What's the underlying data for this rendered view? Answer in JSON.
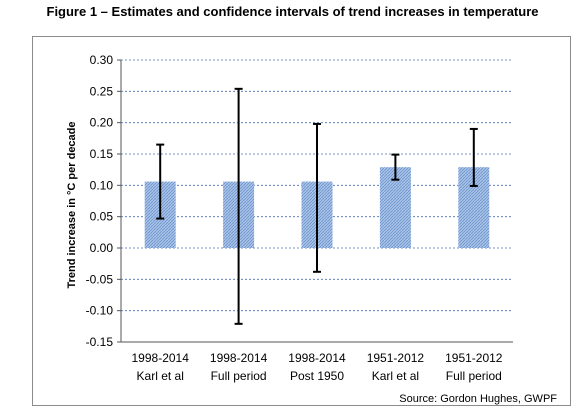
{
  "figure": {
    "title": "Figure 1 – Estimates and confidence intervals of trend increases in temperature",
    "source": "Source: Gordon Hughes, GWPF"
  },
  "colors": {
    "bar": "#a9c4e8",
    "bar_hatch": "#6f95cc",
    "grid": "#4a6fb0",
    "errorbar": "#000000"
  },
  "chart_data": {
    "type": "bar",
    "categories": [
      [
        "1998-2014",
        "Karl et al"
      ],
      [
        "1998-2014",
        "Full period"
      ],
      [
        "1998-2014",
        "Post 1950"
      ],
      [
        "1951-2012",
        "Karl et al"
      ],
      [
        "1951-2012",
        "Full period"
      ]
    ],
    "values": [
      0.106,
      0.106,
      0.106,
      0.129,
      0.129
    ],
    "error_low": [
      0.047,
      -0.121,
      -0.038,
      0.109,
      0.099
    ],
    "error_high": [
      0.165,
      0.254,
      0.198,
      0.149,
      0.19
    ],
    "ylabel": "Trend increase in °C per decade",
    "xlabel": "",
    "ylim": [
      -0.15,
      0.3
    ],
    "yticks": [
      0.3,
      0.25,
      0.2,
      0.15,
      0.1,
      0.05,
      0.0,
      -0.05,
      -0.1,
      -0.15
    ],
    "ytick_labels": [
      "0.30",
      "0.25",
      "0.20",
      "0.15",
      "0.10",
      "0.05",
      "0.00",
      "-0.05",
      "-0.10",
      "-0.15"
    ],
    "grid": true,
    "legend": "none"
  }
}
